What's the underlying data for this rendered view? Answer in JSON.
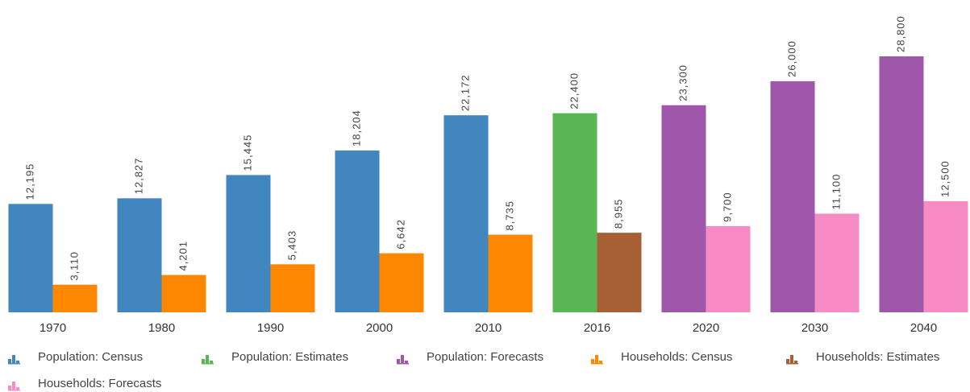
{
  "chart_data": {
    "type": "bar",
    "categories": [
      "1970",
      "1980",
      "1990",
      "2000",
      "2010",
      "2016",
      "2020",
      "2030",
      "2040"
    ],
    "ylim": [
      0,
      28800
    ],
    "series": [
      {
        "name": "Population: Census",
        "color": "#4286c0",
        "values": [
          12195,
          12827,
          15445,
          18204,
          22172,
          null,
          null,
          null,
          null
        ],
        "value_labels": [
          "12,195",
          "12,827",
          "15,445",
          "18,204",
          "22,172",
          null,
          null,
          null,
          null
        ]
      },
      {
        "name": "Population: Estimates",
        "color": "#58b655",
        "values": [
          null,
          null,
          null,
          null,
          null,
          22400,
          null,
          null,
          null
        ],
        "value_labels": [
          null,
          null,
          null,
          null,
          null,
          "22,400",
          null,
          null,
          null
        ]
      },
      {
        "name": "Population: Forecasts",
        "color": "#9e57a9",
        "values": [
          null,
          null,
          null,
          null,
          null,
          null,
          23300,
          26000,
          28800
        ],
        "value_labels": [
          null,
          null,
          null,
          null,
          null,
          null,
          "23,300",
          "26,000",
          "28,800"
        ]
      },
      {
        "name": "Households: Census",
        "color": "#fd8800",
        "values": [
          3110,
          4201,
          5403,
          6642,
          8735,
          null,
          null,
          null,
          null
        ],
        "value_labels": [
          "3,110",
          "4,201",
          "5,403",
          "6,642",
          "8,735",
          null,
          null,
          null,
          null
        ]
      },
      {
        "name": "Households: Estimates",
        "color": "#a75f34",
        "values": [
          null,
          null,
          null,
          null,
          null,
          8955,
          null,
          null,
          null
        ],
        "value_labels": [
          null,
          null,
          null,
          null,
          null,
          "8,955",
          null,
          null,
          null
        ]
      },
      {
        "name": "Households: Forecasts",
        "color": "#f78bc6",
        "values": [
          null,
          null,
          null,
          null,
          null,
          null,
          9700,
          11100,
          12500
        ],
        "value_labels": [
          null,
          null,
          null,
          null,
          null,
          null,
          "9,700",
          "11,100",
          "12,500"
        ]
      }
    ]
  }
}
